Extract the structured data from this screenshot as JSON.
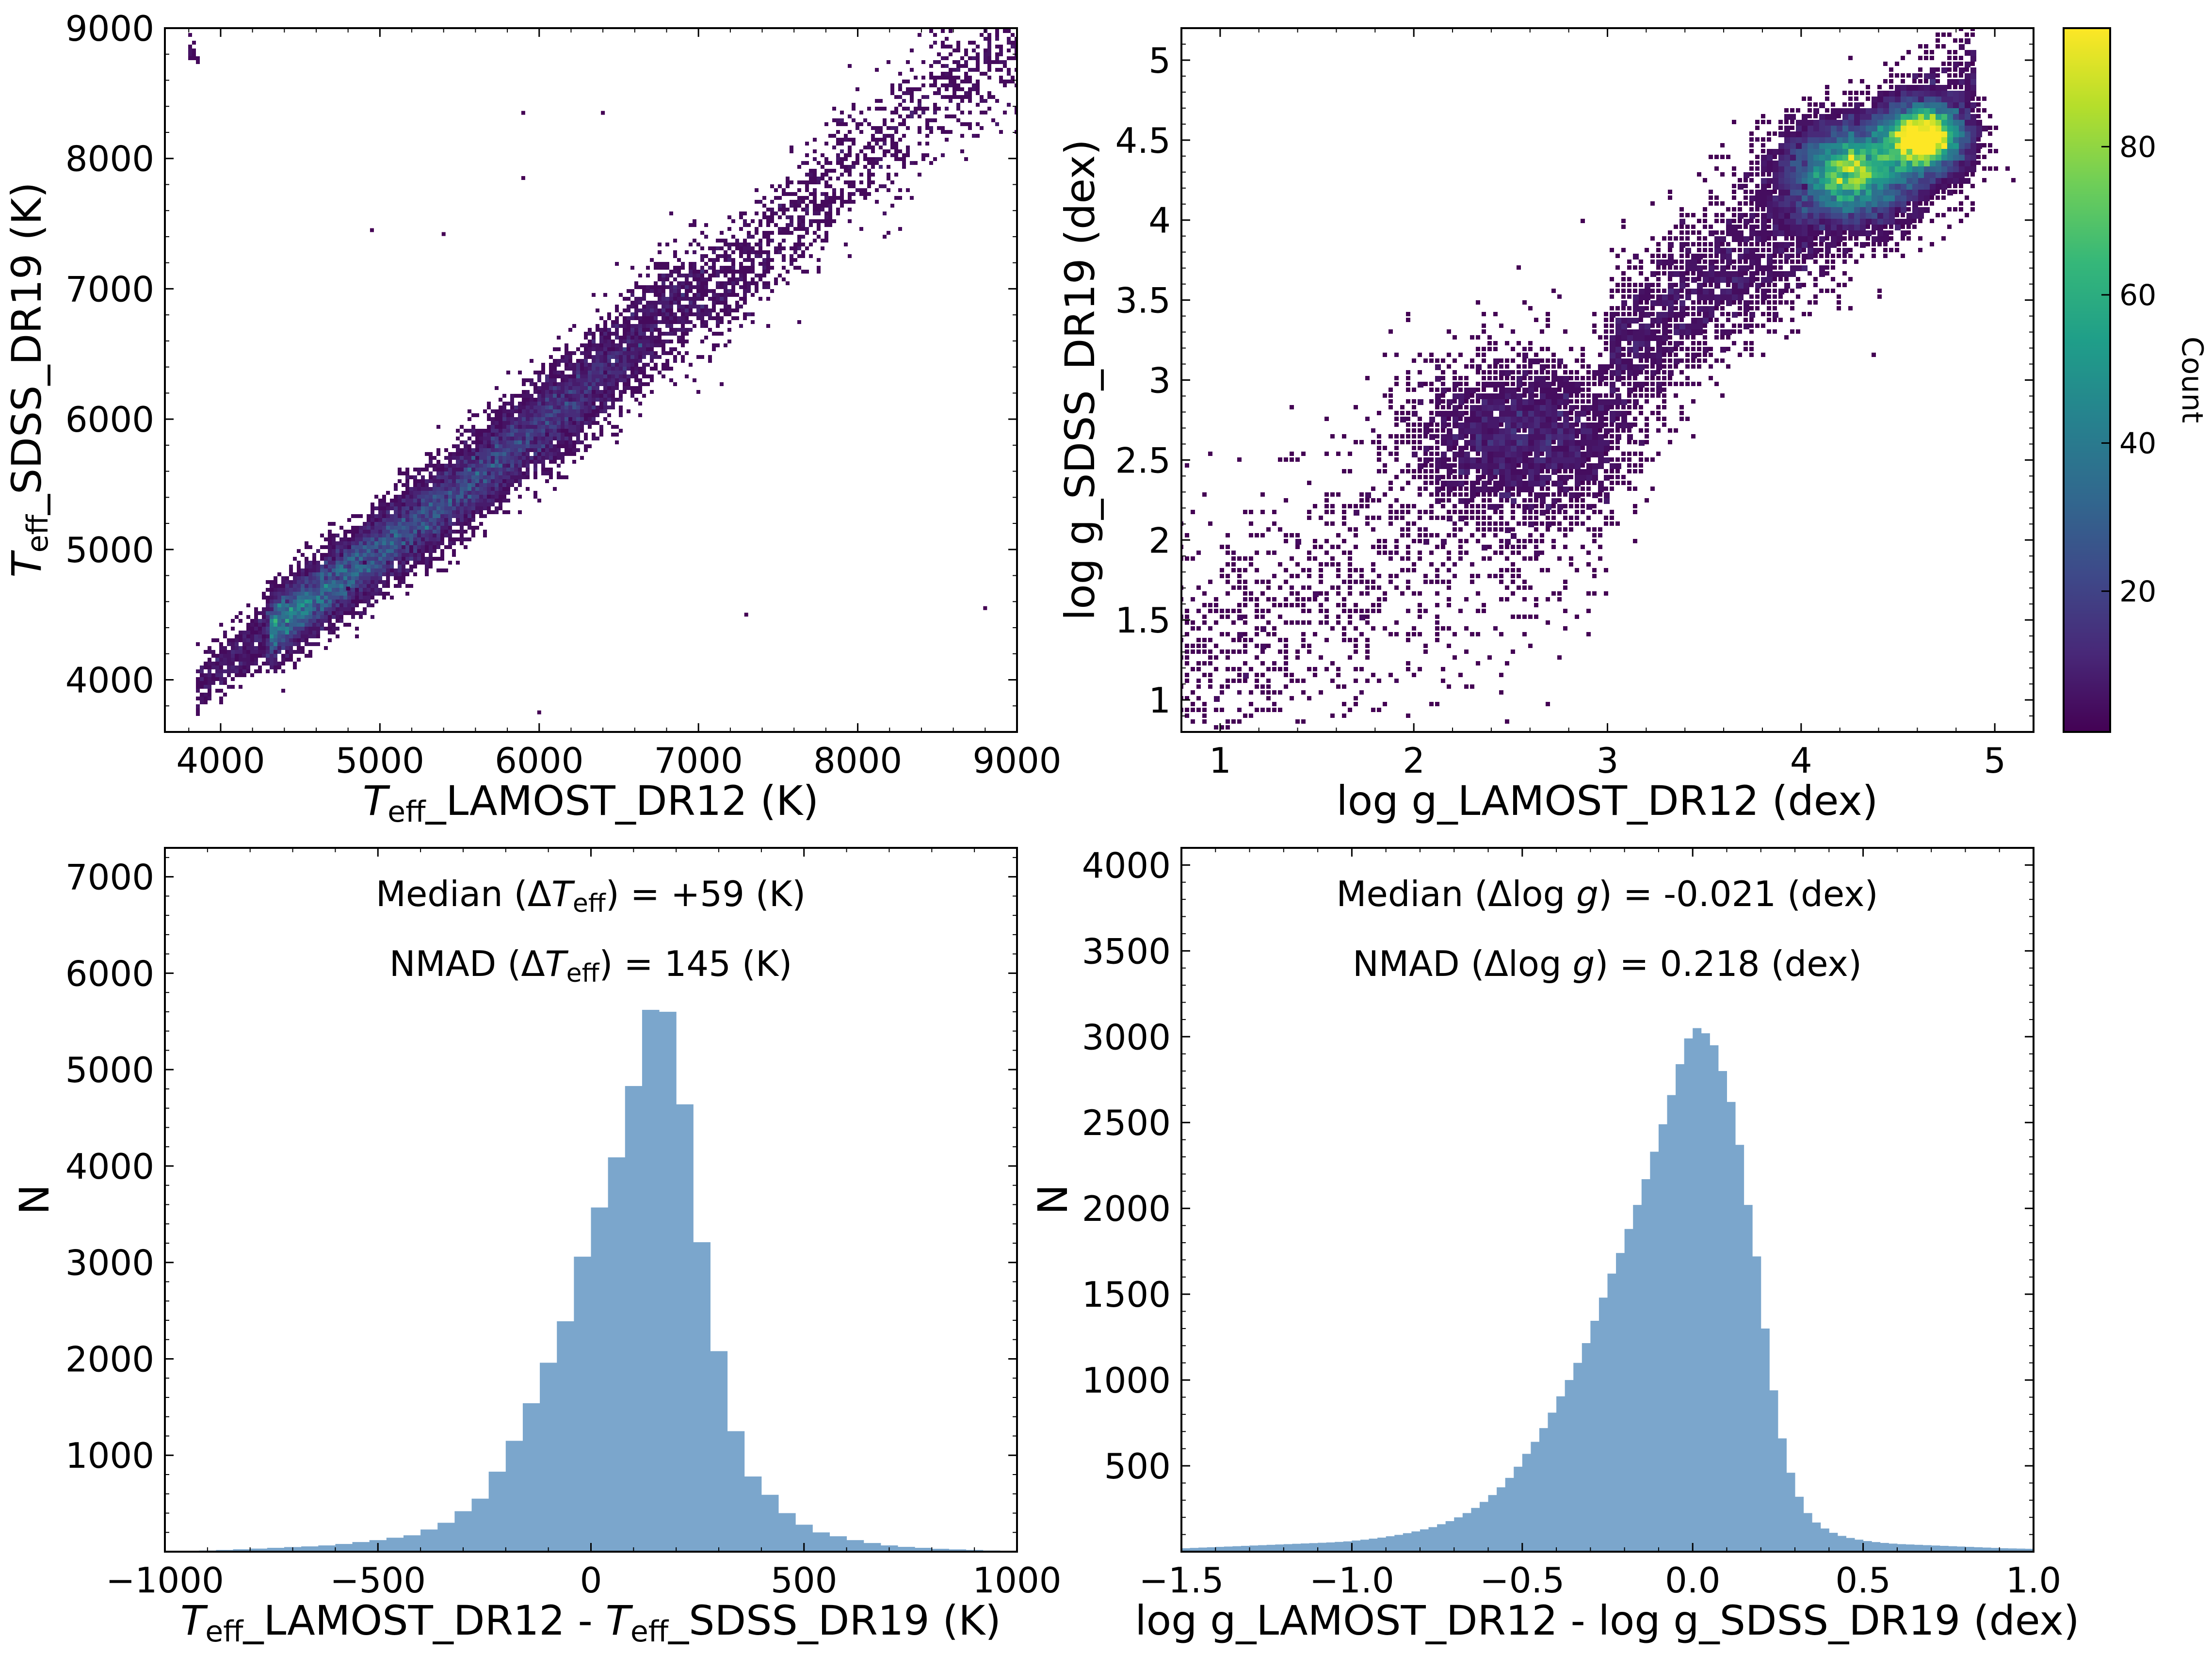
{
  "colors": {
    "bar": "#7ba6cc",
    "viridis": [
      "#440154",
      "#482878",
      "#3e4989",
      "#31688e",
      "#26828e",
      "#1f9e89",
      "#35b779",
      "#6ece58",
      "#b5de2b",
      "#fde725"
    ]
  },
  "colorbar": {
    "label": "Count",
    "range": [
      1,
      96
    ],
    "ticks": [
      20,
      40,
      60,
      80
    ],
    "tick_labels": [
      "20",
      "40",
      "60",
      "80"
    ]
  },
  "chart_data": [
    {
      "id": "teff_scatter",
      "type": "heatmap",
      "subtype": "hexbin",
      "xlabel_parts": [
        "T",
        "eff",
        "_LAMOST_DR12 (K)"
      ],
      "ylabel_parts": [
        "T",
        "eff",
        "_SDSS_DR19 (K)"
      ],
      "xlim": [
        3650,
        9000
      ],
      "ylim": [
        3600,
        9000
      ],
      "xticks": [
        4000,
        5000,
        6000,
        7000,
        8000,
        9000
      ],
      "xtick_labels": [
        "4000",
        "5000",
        "6000",
        "7000",
        "8000",
        "9000"
      ],
      "yticks": [
        4000,
        5000,
        6000,
        7000,
        8000,
        9000
      ],
      "ytick_labels": [
        "4000",
        "5000",
        "6000",
        "7000",
        "8000",
        "9000"
      ],
      "ridge": {
        "x": [
          3850,
          4000,
          4500,
          5000,
          5500,
          6000,
          6500,
          6800,
          7000,
          7300,
          7600,
          7900,
          8200,
          8500,
          8800,
          9000
        ],
        "y": [
          3950,
          4100,
          4550,
          5000,
          5450,
          5950,
          6450,
          6850,
          6950,
          7150,
          7500,
          7900,
          8150,
          8500,
          8700,
          8850
        ]
      },
      "outliers": [
        [
          4950,
          7450
        ],
        [
          5400,
          7420
        ],
        [
          5900,
          8350
        ],
        [
          6400,
          8350
        ],
        [
          5900,
          7850
        ],
        [
          7300,
          4500
        ],
        [
          8800,
          4550
        ],
        [
          6000,
          3750
        ],
        [
          4800,
          4700
        ]
      ]
    },
    {
      "id": "logg_scatter",
      "type": "heatmap",
      "subtype": "hexbin",
      "xlabel": "log g_LAMOST_DR12 (dex)",
      "ylabel": "log g_SDSS_DR19 (dex)",
      "xlim": [
        0.8,
        5.2
      ],
      "ylim": [
        0.8,
        5.2
      ],
      "xticks": [
        1,
        2,
        3,
        4,
        5
      ],
      "xtick_labels": [
        "1",
        "2",
        "3",
        "4",
        "5"
      ],
      "yticks": [
        1,
        1.5,
        2,
        2.5,
        3,
        3.5,
        4,
        4.5,
        5
      ],
      "ytick_labels": [
        "1",
        "1.5",
        "2",
        "2.5",
        "3",
        "3.5",
        "4",
        "4.5",
        "5"
      ],
      "clusters": [
        {
          "x": 4.25,
          "y": 4.3,
          "peak": 90
        },
        {
          "x": 4.62,
          "y": 4.55,
          "peak": 96
        },
        {
          "x": 2.5,
          "y": 2.6,
          "peak": 8
        }
      ]
    },
    {
      "id": "teff_hist",
      "type": "bar",
      "subtype": "histogram",
      "xlabel_parts": [
        "T",
        "eff",
        "_LAMOST_DR12 - ",
        "T",
        "eff",
        "_SDSS_DR19 (K)"
      ],
      "ylabel": "N",
      "xlim": [
        -1000,
        1000
      ],
      "ylim": [
        0,
        7300
      ],
      "xticks": [
        -1000,
        -500,
        0,
        500,
        1000
      ],
      "xtick_labels": [
        "−1000",
        "−500",
        "0",
        "500",
        "1000"
      ],
      "yticks": [
        1000,
        2000,
        3000,
        4000,
        5000,
        6000,
        7000
      ],
      "ytick_labels": [
        "1000",
        "2000",
        "3000",
        "4000",
        "5000",
        "6000",
        "7000"
      ],
      "bin_edges": [
        -1000,
        -960,
        -920,
        -880,
        -840,
        -800,
        -760,
        -720,
        -680,
        -640,
        -600,
        -560,
        -520,
        -480,
        -440,
        -400,
        -360,
        -320,
        -280,
        -240,
        -200,
        -160,
        -120,
        -80,
        -40,
        0,
        40,
        80,
        120,
        160,
        200,
        240,
        280,
        320,
        360,
        400,
        440,
        480,
        520,
        560,
        600,
        640,
        680,
        720,
        760,
        800,
        840,
        880,
        920,
        960,
        1000
      ],
      "counts": [
        5,
        8,
        12,
        18,
        25,
        32,
        40,
        48,
        55,
        65,
        80,
        100,
        120,
        145,
        170,
        230,
        300,
        420,
        550,
        830,
        1150,
        1540,
        1960,
        2390,
        3060,
        3570,
        4090,
        4830,
        5620,
        5600,
        4640,
        3210,
        2080,
        1250,
        780,
        590,
        400,
        280,
        200,
        160,
        120,
        90,
        65,
        50,
        40,
        30,
        24,
        18,
        12,
        8
      ],
      "annotations": [
        {
          "prefix": "Median (Δ",
          "sym": "T",
          "sub": "eff",
          "suffix": ") = +59 (K)"
        },
        {
          "prefix": "NMAD (Δ",
          "sym": "T",
          "sub": "eff",
          "suffix": ") = 145 (K)"
        }
      ]
    },
    {
      "id": "logg_hist",
      "type": "bar",
      "subtype": "histogram",
      "xlabel": "log g_LAMOST_DR12 - log g_SDSS_DR19 (dex)",
      "ylabel": "N",
      "xlim": [
        -1.5,
        1.0
      ],
      "ylim": [
        0,
        4100
      ],
      "xticks": [
        -1.5,
        -1.0,
        -0.5,
        0.0,
        0.5,
        1.0
      ],
      "xtick_labels": [
        "−1.5",
        "−1.0",
        "−0.5",
        "0.0",
        "0.5",
        "1.0"
      ],
      "yticks": [
        500,
        1000,
        1500,
        2000,
        2500,
        3000,
        3500,
        4000
      ],
      "ytick_labels": [
        "500",
        "1000",
        "1500",
        "2000",
        "2500",
        "3000",
        "3500",
        "4000"
      ],
      "bin_edges": [
        -1.5,
        -1.475,
        -1.45,
        -1.425,
        -1.4,
        -1.375,
        -1.35,
        -1.325,
        -1.3,
        -1.275,
        -1.25,
        -1.225,
        -1.2,
        -1.175,
        -1.15,
        -1.125,
        -1.1,
        -1.075,
        -1.05,
        -1.025,
        -1.0,
        -0.975,
        -0.95,
        -0.925,
        -0.9,
        -0.875,
        -0.85,
        -0.825,
        -0.8,
        -0.775,
        -0.75,
        -0.725,
        -0.7,
        -0.675,
        -0.65,
        -0.625,
        -0.6,
        -0.575,
        -0.55,
        -0.525,
        -0.5,
        -0.475,
        -0.45,
        -0.425,
        -0.4,
        -0.375,
        -0.35,
        -0.325,
        -0.3,
        -0.275,
        -0.25,
        -0.225,
        -0.2,
        -0.175,
        -0.15,
        -0.125,
        -0.1,
        -0.075,
        -0.05,
        -0.025,
        0.0,
        0.025,
        0.05,
        0.075,
        0.1,
        0.125,
        0.15,
        0.175,
        0.2,
        0.225,
        0.25,
        0.275,
        0.3,
        0.325,
        0.35,
        0.375,
        0.4,
        0.425,
        0.45,
        0.475,
        0.5,
        0.525,
        0.55,
        0.575,
        0.6,
        0.625,
        0.65,
        0.675,
        0.7,
        0.725,
        0.75,
        0.775,
        0.8,
        0.825,
        0.85,
        0.875,
        0.9,
        0.925,
        0.95,
        0.975,
        1.0
      ],
      "counts": [
        20,
        22,
        24,
        26,
        28,
        30,
        32,
        34,
        36,
        38,
        40,
        42,
        44,
        46,
        48,
        50,
        52,
        54,
        57,
        60,
        65,
        70,
        76,
        82,
        90,
        98,
        108,
        118,
        130,
        143,
        160,
        178,
        200,
        225,
        255,
        290,
        330,
        375,
        430,
        495,
        570,
        640,
        720,
        810,
        905,
        1000,
        1100,
        1215,
        1345,
        1480,
        1620,
        1740,
        1880,
        2020,
        2170,
        2330,
        2490,
        2660,
        2840,
        2990,
        3050,
        3020,
        2950,
        2800,
        2620,
        2370,
        2020,
        1720,
        1300,
        940,
        660,
        460,
        320,
        225,
        170,
        135,
        110,
        92,
        80,
        70,
        62,
        56,
        51,
        47,
        44,
        42,
        40,
        38,
        36,
        34,
        32,
        30,
        28,
        26,
        24,
        22,
        20,
        19,
        18,
        17
      ],
      "annotations": [
        {
          "prefix": "Median (Δlog ",
          "sym": "g",
          "suffix": ") = -0.021 (dex)"
        },
        {
          "prefix": "NMAD (Δlog ",
          "sym": "g",
          "suffix": ") = 0.218 (dex)"
        }
      ]
    }
  ]
}
